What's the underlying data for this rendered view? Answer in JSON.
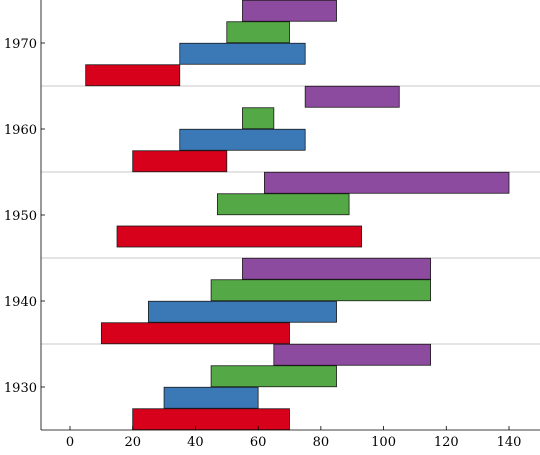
{
  "chart_data": {
    "type": "bar",
    "orientation": "horizontal",
    "xlabel": "",
    "ylabel": "",
    "xlim": [
      -10,
      150
    ],
    "x_ticks": [
      "0",
      "20",
      "40",
      "60",
      "80",
      "100",
      "120",
      "140"
    ],
    "y_ticks": [
      "1930",
      "1940",
      "1950",
      "1960",
      "1970"
    ],
    "grid": false,
    "legend": "none",
    "colors": {
      "red": "#d7011b",
      "blue": "#3a78b6",
      "green": "#54a845",
      "purple": "#8d4b9f"
    },
    "bands": [
      {
        "label": "1930",
        "bars": [
          {
            "color": "red",
            "start": 20,
            "end": 70
          },
          {
            "color": "blue",
            "start": 30,
            "end": 60
          },
          {
            "color": "green",
            "start": 45,
            "end": 85
          },
          {
            "color": "purple",
            "start": 65,
            "end": 115
          }
        ]
      },
      {
        "label": "1940",
        "bars": [
          {
            "color": "red",
            "start": 10,
            "end": 70
          },
          {
            "color": "blue",
            "start": 25,
            "end": 85
          },
          {
            "color": "green",
            "start": 45,
            "end": 115
          },
          {
            "color": "purple",
            "start": 55,
            "end": 115
          }
        ]
      },
      {
        "label": "1950",
        "bars": [
          {
            "color": "red",
            "start": 15,
            "end": 93
          },
          {
            "color": "green",
            "start": 47,
            "end": 89
          },
          {
            "color": "purple",
            "start": 62,
            "end": 140
          }
        ]
      },
      {
        "label": "1960",
        "bars": [
          {
            "color": "red",
            "start": 20,
            "end": 50
          },
          {
            "color": "blue",
            "start": 35,
            "end": 75
          },
          {
            "color": "green",
            "start": 55,
            "end": 65
          },
          {
            "color": "purple",
            "start": 75,
            "end": 105
          }
        ]
      },
      {
        "label": "1970",
        "bars": [
          {
            "color": "red",
            "start": 5,
            "end": 35
          },
          {
            "color": "blue",
            "start": 35,
            "end": 75
          },
          {
            "color": "green",
            "start": 50,
            "end": 70
          },
          {
            "color": "purple",
            "start": 55,
            "end": 85
          }
        ]
      }
    ]
  }
}
